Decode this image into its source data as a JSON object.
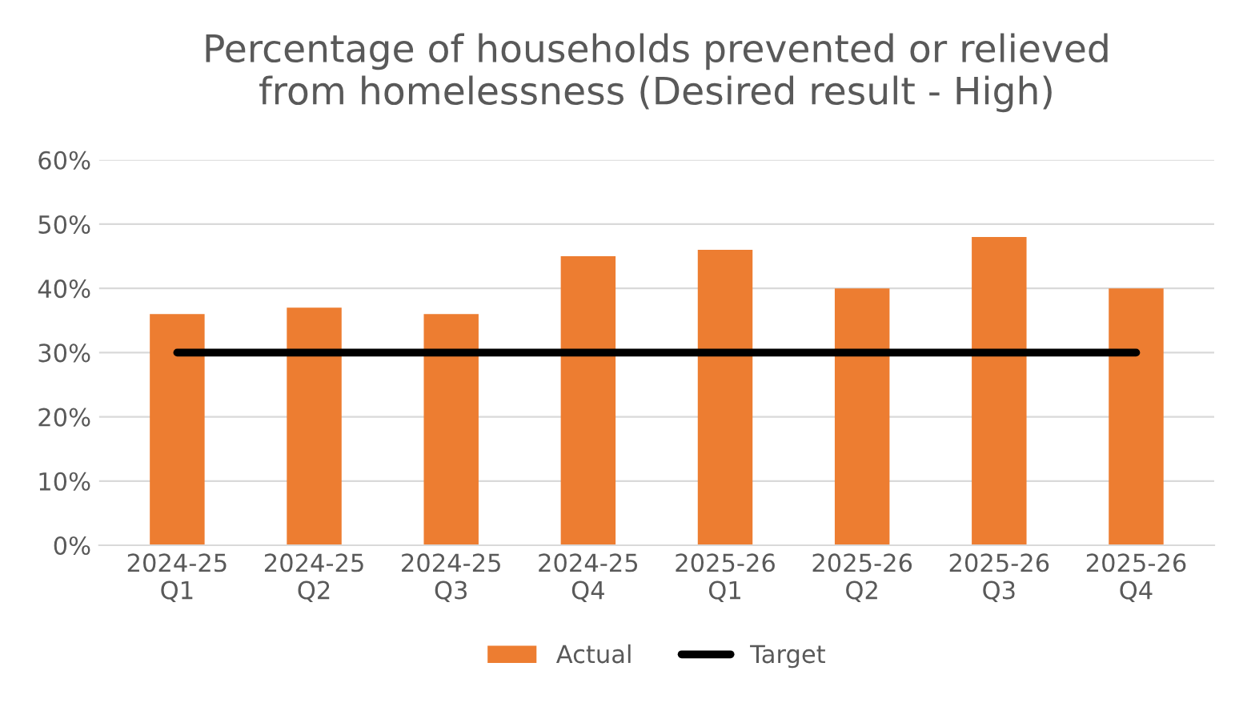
{
  "chart_data": {
    "type": "bar",
    "title": "Percentage of households prevented or relieved\nfrom homelessness (Desired result - High)",
    "categories": [
      "2024-25\nQ1",
      "2024-25\nQ2",
      "2024-25\nQ3",
      "2024-25\nQ4",
      "2025-26\nQ1",
      "2025-26\nQ2",
      "2025-26\nQ3",
      "2025-26\nQ4"
    ],
    "series": [
      {
        "name": "Actual",
        "color": "#ed7d31",
        "values": [
          36,
          37,
          36,
          45,
          46,
          40,
          48,
          40
        ]
      },
      {
        "name": "Target",
        "type": "line",
        "color": "#000000",
        "values": [
          30,
          30,
          30,
          30,
          30,
          30,
          30,
          30
        ]
      }
    ],
    "ylim": [
      0,
      60
    ],
    "yticks": [
      {
        "value": 0,
        "label": "0%"
      },
      {
        "value": 10,
        "label": "10%"
      },
      {
        "value": 20,
        "label": "20%"
      },
      {
        "value": 30,
        "label": "30%"
      },
      {
        "value": 40,
        "label": "40%"
      },
      {
        "value": 50,
        "label": "50%"
      },
      {
        "value": 60,
        "label": "60%"
      }
    ],
    "grid": "y",
    "legend": "bottom",
    "marker": "none",
    "line_style": "solid"
  }
}
